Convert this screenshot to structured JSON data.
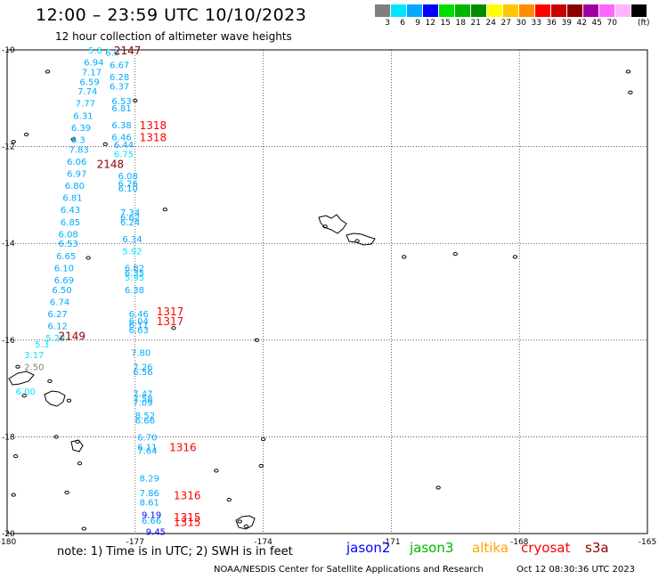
{
  "header": {
    "title": "12:00 – 23:59 UTC 10/10/2023",
    "subtitle": "12 hour collection of altimeter wave heights"
  },
  "color_scale": {
    "colors": [
      "#7f7f7f",
      "#00e5ff",
      "#00aaff",
      "#0000ff",
      "#00dd00",
      "#00b400",
      "#008c00",
      "#ffff00",
      "#ffc800",
      "#ff8c00",
      "#ff0000",
      "#c80000",
      "#8c0000",
      "#a000a0",
      "#ff66ff",
      "#ffb4ff",
      "#000000"
    ],
    "labels": [
      "3",
      "6",
      "9",
      "12",
      "15",
      "18",
      "21",
      "24",
      "27",
      "30",
      "33",
      "36",
      "39",
      "42",
      "45",
      "70"
    ],
    "unit": "(ft)"
  },
  "axes": {
    "lat_labels": [
      "-10",
      "-12",
      "-14",
      "-16",
      "-18",
      "-20"
    ],
    "lon_labels": [
      "-180",
      "-177",
      "-174",
      "-171",
      "-168",
      "-165"
    ]
  },
  "map_data": {
    "lon_range": [
      -180,
      -165
    ],
    "lat_range": [
      -20,
      -10
    ],
    "passes": [
      {
        "name": "2147",
        "lon": -177.5,
        "lat": -10.0,
        "color": "#8c0000"
      },
      {
        "name": "1318",
        "lon": -176.9,
        "lat": -11.55,
        "color": "#ff0000"
      },
      {
        "name": "1318",
        "lon": -176.9,
        "lat": -11.8,
        "color": "#ff0000"
      },
      {
        "name": "2148",
        "lon": -177.9,
        "lat": -12.35,
        "color": "#8c0000"
      },
      {
        "name": "1317",
        "lon": -176.5,
        "lat": -15.4,
        "color": "#ff0000"
      },
      {
        "name": "1317",
        "lon": -176.5,
        "lat": -15.6,
        "color": "#ff0000"
      },
      {
        "name": "2149",
        "lon": -178.8,
        "lat": -15.9,
        "color": "#8c0000"
      },
      {
        "name": "1316",
        "lon": -176.2,
        "lat": -18.2,
        "color": "#ff0000"
      },
      {
        "name": "1316",
        "lon": -176.1,
        "lat": -19.2,
        "color": "#ff0000"
      },
      {
        "name": "1315",
        "lon": -176.1,
        "lat": -19.65,
        "color": "#ff0000"
      },
      {
        "name": "1315",
        "lon": -176.1,
        "lat": -19.75,
        "color": "#ff0000"
      }
    ],
    "wave_heights": [
      {
        "v": "5.8",
        "lon": -178.1,
        "lat": -10.0,
        "color": "#00e5ff"
      },
      {
        "v": "6.0",
        "lon": -177.7,
        "lat": -10.05,
        "color": "#00aaff"
      },
      {
        "v": "6.94",
        "lon": -178.2,
        "lat": -10.25,
        "color": "#00aaff"
      },
      {
        "v": "6.67",
        "lon": -177.6,
        "lat": -10.3,
        "color": "#00aaff"
      },
      {
        "v": "7.17",
        "lon": -178.25,
        "lat": -10.45,
        "color": "#00aaff"
      },
      {
        "v": "6.28",
        "lon": -177.6,
        "lat": -10.55,
        "color": "#00aaff"
      },
      {
        "v": "6.59",
        "lon": -178.3,
        "lat": -10.65,
        "color": "#00aaff"
      },
      {
        "v": "6.37",
        "lon": -177.6,
        "lat": -10.75,
        "color": "#00aaff"
      },
      {
        "v": "7.74",
        "lon": -178.35,
        "lat": -10.85,
        "color": "#00aaff"
      },
      {
        "v": "7.77",
        "lon": -178.4,
        "lat": -11.1,
        "color": "#00aaff"
      },
      {
        "v": "6.53",
        "lon": -177.55,
        "lat": -11.05,
        "color": "#00aaff"
      },
      {
        "v": "6.81",
        "lon": -177.55,
        "lat": -11.2,
        "color": "#00aaff"
      },
      {
        "v": "6.31",
        "lon": -178.45,
        "lat": -11.35,
        "color": "#00aaff"
      },
      {
        "v": "6.38",
        "lon": -177.55,
        "lat": -11.55,
        "color": "#00aaff"
      },
      {
        "v": "6.39",
        "lon": -178.5,
        "lat": -11.6,
        "color": "#00aaff"
      },
      {
        "v": "6.46",
        "lon": -177.55,
        "lat": -11.8,
        "color": "#00aaff"
      },
      {
        "v": "6.3",
        "lon": -178.5,
        "lat": -11.85,
        "color": "#00aaff"
      },
      {
        "v": "6.44",
        "lon": -177.5,
        "lat": -11.95,
        "color": "#00aaff"
      },
      {
        "v": "7.83",
        "lon": -178.55,
        "lat": -12.05,
        "color": "#00aaff"
      },
      {
        "v": "6.75",
        "lon": -177.5,
        "lat": -12.15,
        "color": "#00e5ff"
      },
      {
        "v": "6.06",
        "lon": -178.6,
        "lat": -12.3,
        "color": "#00aaff"
      },
      {
        "v": "6.97",
        "lon": -178.6,
        "lat": -12.55,
        "color": "#00aaff"
      },
      {
        "v": "6.08",
        "lon": -177.4,
        "lat": -12.6,
        "color": "#00aaff"
      },
      {
        "v": "6.80",
        "lon": -178.65,
        "lat": -12.8,
        "color": "#00aaff"
      },
      {
        "v": "6.26",
        "lon": -177.4,
        "lat": -12.75,
        "color": "#00aaff"
      },
      {
        "v": "6.10",
        "lon": -177.4,
        "lat": -12.85,
        "color": "#00aaff"
      },
      {
        "v": "6.81",
        "lon": -178.7,
        "lat": -13.05,
        "color": "#00aaff"
      },
      {
        "v": "6.43",
        "lon": -178.75,
        "lat": -13.3,
        "color": "#00aaff"
      },
      {
        "v": "7.34",
        "lon": -177.35,
        "lat": -13.35,
        "color": "#00aaff"
      },
      {
        "v": "6.62",
        "lon": -177.35,
        "lat": -13.45,
        "color": "#00aaff"
      },
      {
        "v": "6.85",
        "lon": -178.75,
        "lat": -13.55,
        "color": "#00aaff"
      },
      {
        "v": "6.24",
        "lon": -177.35,
        "lat": -13.55,
        "color": "#00aaff"
      },
      {
        "v": "6.08",
        "lon": -178.8,
        "lat": -13.8,
        "color": "#00aaff"
      },
      {
        "v": "6.34",
        "lon": -177.3,
        "lat": -13.9,
        "color": "#00aaff"
      },
      {
        "v": "6.53",
        "lon": -178.8,
        "lat": -14.0,
        "color": "#00aaff"
      },
      {
        "v": "5.92",
        "lon": -177.3,
        "lat": -14.15,
        "color": "#00e5ff"
      },
      {
        "v": "6.65",
        "lon": -178.85,
        "lat": -14.25,
        "color": "#00aaff"
      },
      {
        "v": "6.82",
        "lon": -177.25,
        "lat": -14.5,
        "color": "#00aaff"
      },
      {
        "v": "6.10",
        "lon": -178.9,
        "lat": -14.5,
        "color": "#00aaff"
      },
      {
        "v": "6.35",
        "lon": -177.25,
        "lat": -14.6,
        "color": "#00aaff"
      },
      {
        "v": "5.95",
        "lon": -177.25,
        "lat": -14.7,
        "color": "#00e5ff"
      },
      {
        "v": "6.69",
        "lon": -178.9,
        "lat": -14.75,
        "color": "#00aaff"
      },
      {
        "v": "6.38",
        "lon": -177.25,
        "lat": -14.95,
        "color": "#00aaff"
      },
      {
        "v": "6.50",
        "lon": -178.95,
        "lat": -14.95,
        "color": "#00aaff"
      },
      {
        "v": "6.74",
        "lon": -179.0,
        "lat": -15.2,
        "color": "#00aaff"
      },
      {
        "v": "6.27",
        "lon": -179.05,
        "lat": -15.45,
        "color": "#00aaff"
      },
      {
        "v": "6.46",
        "lon": -177.15,
        "lat": -15.45,
        "color": "#00aaff"
      },
      {
        "v": "6.04",
        "lon": -177.15,
        "lat": -15.6,
        "color": "#00aaff"
      },
      {
        "v": "6.12",
        "lon": -179.05,
        "lat": -15.7,
        "color": "#00aaff"
      },
      {
        "v": "6.11",
        "lon": -177.15,
        "lat": -15.68,
        "color": "#00aaff"
      },
      {
        "v": "6.63",
        "lon": -177.15,
        "lat": -15.78,
        "color": "#00aaff"
      },
      {
        "v": "5.28",
        "lon": -179.1,
        "lat": -15.95,
        "color": "#00e5ff"
      },
      {
        "v": "5.3",
        "lon": -179.35,
        "lat": -16.08,
        "color": "#00e5ff"
      },
      {
        "v": "3.17",
        "lon": -179.6,
        "lat": -16.3,
        "color": "#00e5ff"
      },
      {
        "v": "7.80",
        "lon": -177.1,
        "lat": -16.25,
        "color": "#00aaff"
      },
      {
        "v": "2.50",
        "lon": -179.6,
        "lat": -16.55,
        "color": "#7f7f7f"
      },
      {
        "v": "7.26",
        "lon": -177.05,
        "lat": -16.55,
        "color": "#00aaff"
      },
      {
        "v": "6.56",
        "lon": -177.05,
        "lat": -16.65,
        "color": "#00aaff"
      },
      {
        "v": "6.00",
        "lon": -179.8,
        "lat": -17.05,
        "color": "#00e5ff"
      },
      {
        "v": "7.47",
        "lon": -177.05,
        "lat": -17.1,
        "color": "#00aaff"
      },
      {
        "v": "7.58",
        "lon": -177.05,
        "lat": -17.2,
        "color": "#00aaff"
      },
      {
        "v": "7.09",
        "lon": -177.05,
        "lat": -17.28,
        "color": "#00aaff"
      },
      {
        "v": "8.52",
        "lon": -177.0,
        "lat": -17.55,
        "color": "#00aaff"
      },
      {
        "v": "6.66",
        "lon": -177.0,
        "lat": -17.65,
        "color": "#00aaff"
      },
      {
        "v": "6.70",
        "lon": -176.95,
        "lat": -18.0,
        "color": "#00aaff"
      },
      {
        "v": "6.11",
        "lon": -176.95,
        "lat": -18.2,
        "color": "#00aaff"
      },
      {
        "v": "7.64",
        "lon": -176.95,
        "lat": -18.28,
        "color": "#00aaff"
      },
      {
        "v": "8.29",
        "lon": -176.9,
        "lat": -18.85,
        "color": "#00aaff"
      },
      {
        "v": "7.86",
        "lon": -176.9,
        "lat": -19.15,
        "color": "#00aaff"
      },
      {
        "v": "8.61",
        "lon": -176.9,
        "lat": -19.35,
        "color": "#00aaff"
      },
      {
        "v": "9.19",
        "lon": -176.85,
        "lat": -19.6,
        "color": "#0000ff"
      },
      {
        "v": "6.66",
        "lon": -176.85,
        "lat": -19.72,
        "color": "#00aaff"
      },
      {
        "v": "9.45",
        "lon": -176.75,
        "lat": -19.95,
        "color": "#0000ff"
      }
    ],
    "islands": [
      {
        "lon": -179.05,
        "lat": -10.45
      },
      {
        "lon": -177.0,
        "lat": -11.05
      },
      {
        "lon": -179.55,
        "lat": -11.75
      },
      {
        "lon": -179.85,
        "lat": -11.9
      },
      {
        "lon": -178.45,
        "lat": -11.85
      },
      {
        "lon": -177.7,
        "lat": -11.95
      },
      {
        "lon": -176.3,
        "lat": -13.3
      },
      {
        "lon": -172.55,
        "lat": -13.65
      },
      {
        "lon": -171.8,
        "lat": -13.95
      },
      {
        "lon": -170.7,
        "lat": -14.28
      },
      {
        "lon": -169.5,
        "lat": -14.22
      },
      {
        "lon": -168.1,
        "lat": -14.28
      },
      {
        "lon": -178.1,
        "lat": -14.3
      },
      {
        "lon": -176.1,
        "lat": -15.75
      },
      {
        "lon": -174.15,
        "lat": -16.0
      },
      {
        "lon": -179.75,
        "lat": -16.55
      },
      {
        "lon": -179.0,
        "lat": -16.85
      },
      {
        "lon": -178.55,
        "lat": -17.25
      },
      {
        "lon": -179.6,
        "lat": -17.15
      },
      {
        "lon": -178.85,
        "lat": -18.0
      },
      {
        "lon": -178.35,
        "lat": -18.1
      },
      {
        "lon": -179.8,
        "lat": -18.4
      },
      {
        "lon": -178.3,
        "lat": -18.55
      },
      {
        "lon": -174.0,
        "lat": -18.05
      },
      {
        "lon": -174.05,
        "lat": -18.6
      },
      {
        "lon": -175.1,
        "lat": -18.7
      },
      {
        "lon": -169.9,
        "lat": -19.05
      },
      {
        "lon": -179.85,
        "lat": -19.2
      },
      {
        "lon": -178.6,
        "lat": -19.15
      },
      {
        "lon": -174.8,
        "lat": -19.3
      },
      {
        "lon": -174.55,
        "lat": -19.75
      },
      {
        "lon": -174.4,
        "lat": -19.85
      },
      {
        "lon": -178.2,
        "lat": -19.9
      },
      {
        "lon": -165.45,
        "lat": -10.45
      },
      {
        "lon": -165.4,
        "lat": -10.88
      }
    ]
  },
  "footer": {
    "note": "note:  1) Time is in UTC; 2) SWH is in feet",
    "satellites": [
      {
        "name": "jason2",
        "color": "#0000ff"
      },
      {
        "name": "jason3",
        "color": "#00b400"
      },
      {
        "name": "altika",
        "color": "#ffa500"
      },
      {
        "name": "cryosat",
        "color": "#ff0000"
      },
      {
        "name": "s3a",
        "color": "#8c0000"
      }
    ],
    "credit": "NOAA/NESDIS Center for Satellite Applications and Research",
    "timestamp": "Oct 12 08:30:36 UTC 2023"
  }
}
